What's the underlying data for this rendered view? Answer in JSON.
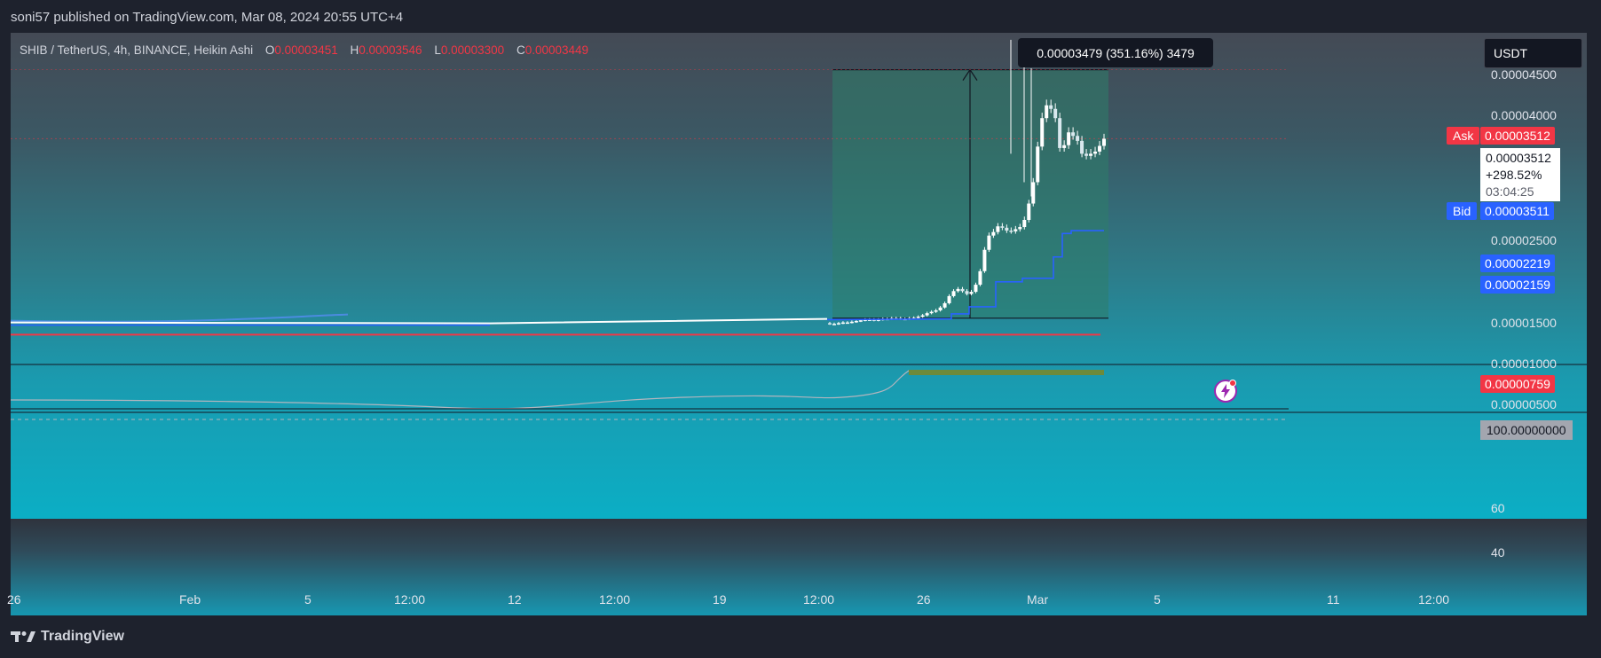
{
  "header": {
    "published": "soni57 published on TradingView.com, Mar 08, 2024 20:55 UTC+4"
  },
  "legend": {
    "symbol": "SHIB / TetherUS, 4h, BINANCE, Heikin Ashi",
    "o_key": "O",
    "o_val": "0.00003451",
    "h_key": "H",
    "h_val": "0.00003546",
    "l_key": "L",
    "l_val": "0.00003300",
    "c_key": "C",
    "c_val": "0.00003449"
  },
  "measure": {
    "label": "0.00003479 (351.16%) 3479"
  },
  "currency": {
    "label": "USDT"
  },
  "price_axis": {
    "ticks": [
      "0.00004500",
      "0.00004000",
      "0.00002500",
      "0.00001500",
      "0.00001000",
      "0.00000500"
    ],
    "ask_label": "Ask",
    "ask_value": "0.00003512",
    "bid_label": "Bid",
    "bid_value": "0.00003511",
    "last_value": "0.00003512",
    "last_change": "+298.52%",
    "countdown": "03:04:25",
    "ma_upper": "0.00002219",
    "ma_lower": "0.00002159",
    "red_level": "0.00000759"
  },
  "rsi": {
    "value_label": "100.00000000",
    "ticks": [
      "60",
      "40"
    ]
  },
  "x_axis": {
    "labels": [
      "26",
      "Feb",
      "5",
      "12:00",
      "12",
      "12:00",
      "19",
      "12:00",
      "26",
      "Mar",
      "5",
      "11",
      "12:00"
    ]
  },
  "footer": {
    "brand": "TradingView"
  },
  "colors": {
    "up_candle": "#ffffff",
    "ma_line": "#2962ff",
    "red_line": "#f23645",
    "measure_fill": "#2e7d6a",
    "rsi_line": "#b2b5be",
    "rsi_fill": "#6d8a3a"
  },
  "chart_data": {
    "type": "candlestick",
    "symbol": "SHIB / TetherUS",
    "timeframe": "4h",
    "ylim": [
      4e-06,
      4.8e-05
    ],
    "y_ticks": [
      5e-06,
      1e-05,
      1.5e-05,
      2.5e-05,
      4e-05,
      4.5e-05
    ],
    "series_price_path": [
      9.2e-06,
      9.1e-06,
      9.1e-06,
      9.2e-06,
      9.3e-06,
      9.3e-06,
      9.4e-06,
      9.5e-06,
      9.6e-06,
      9.7e-06,
      9.7e-06,
      9.6e-06,
      9.7e-06,
      9.8e-06,
      9.8e-06,
      9.9e-06,
      9.9e-06,
      9.8e-06,
      9.8e-06,
      9.9e-06,
      9.95e-06,
      1.01e-05,
      1.03e-05,
      1.06e-05,
      1.08e-05,
      1.1e-05,
      1.14e-05,
      1.2e-05,
      1.3e-05,
      1.37e-05,
      1.4e-05,
      1.37e-05,
      1.33e-05,
      1.36e-05,
      1.46e-05,
      1.65e-05,
      1.95e-05,
      2.15e-05,
      2.2e-05,
      2.28e-05,
      2.26e-05,
      2.22e-05,
      2.21e-05,
      2.24e-05,
      2.27e-05,
      2.37e-05,
      2.6e-05,
      2.9e-05,
      3.4e-05,
      3.8e-05,
      3.98e-05,
      3.93e-05,
      3.8e-05,
      3.38e-05,
      3.42e-05,
      3.6e-05,
      3.55e-05,
      3.48e-05,
      3.3e-05,
      3.27e-05,
      3.3e-05,
      3.33e-05,
      3.41e-05,
      3.51e-05
    ],
    "ma_line_steps": [
      9.8e-06,
      1.05e-05,
      1.15e-05,
      1.5e-05,
      1.55e-05,
      1.85e-05,
      2.18e-05,
      2.22e-05
    ],
    "measure": {
      "from": 9.9e-06,
      "to": 4.48e-05,
      "change": "0.00003479 (351.16%) 3479"
    },
    "rsi_ticks": [
      60,
      40
    ]
  }
}
